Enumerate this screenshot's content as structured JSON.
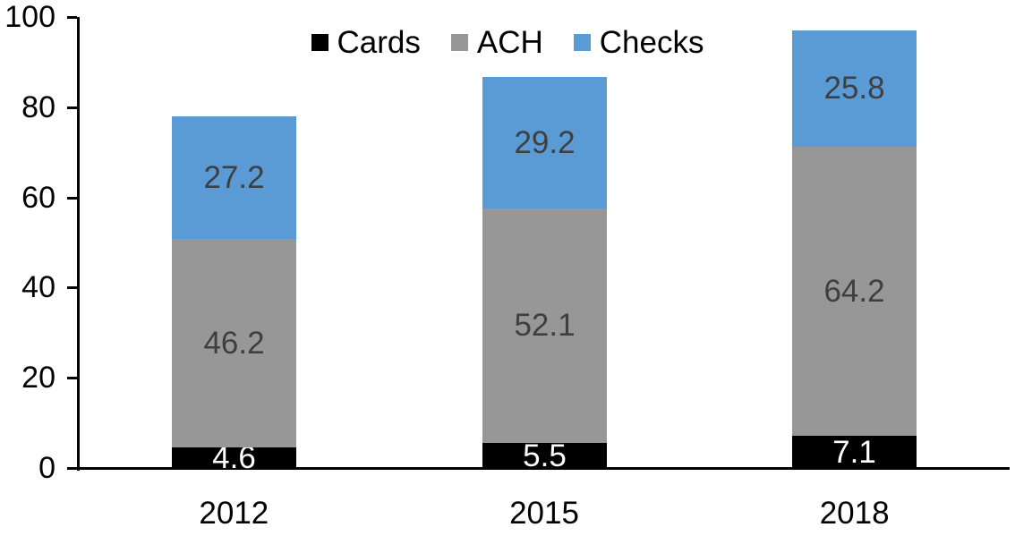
{
  "chart_data": {
    "type": "bar",
    "stacked": true,
    "title": "",
    "xlabel": "",
    "ylabel": "",
    "categories": [
      "2012",
      "2015",
      "2018"
    ],
    "series": [
      {
        "name": "Cards",
        "color": "#000000",
        "label_color": "#ffffff",
        "values": [
          4.6,
          5.5,
          7.1
        ]
      },
      {
        "name": "ACH",
        "color": "#979797",
        "label_color": "#3f3f3f",
        "values": [
          46.2,
          52.1,
          64.2
        ]
      },
      {
        "name": "Checks",
        "color": "#5b9bd5",
        "label_color": "#3f3f3f",
        "values": [
          27.2,
          29.2,
          25.8
        ]
      }
    ],
    "stack_totals": [
      78.0,
      86.8,
      97.1
    ],
    "ylim": [
      0,
      100
    ],
    "yticks": [
      0,
      20,
      40,
      60,
      80,
      100
    ],
    "grid": false,
    "legend_position": "top-center",
    "legend_labels": [
      "Cards",
      "ACH",
      "Checks"
    ],
    "axis_color": "#000000",
    "background_color": "#ffffff",
    "value_decimals": 1
  }
}
